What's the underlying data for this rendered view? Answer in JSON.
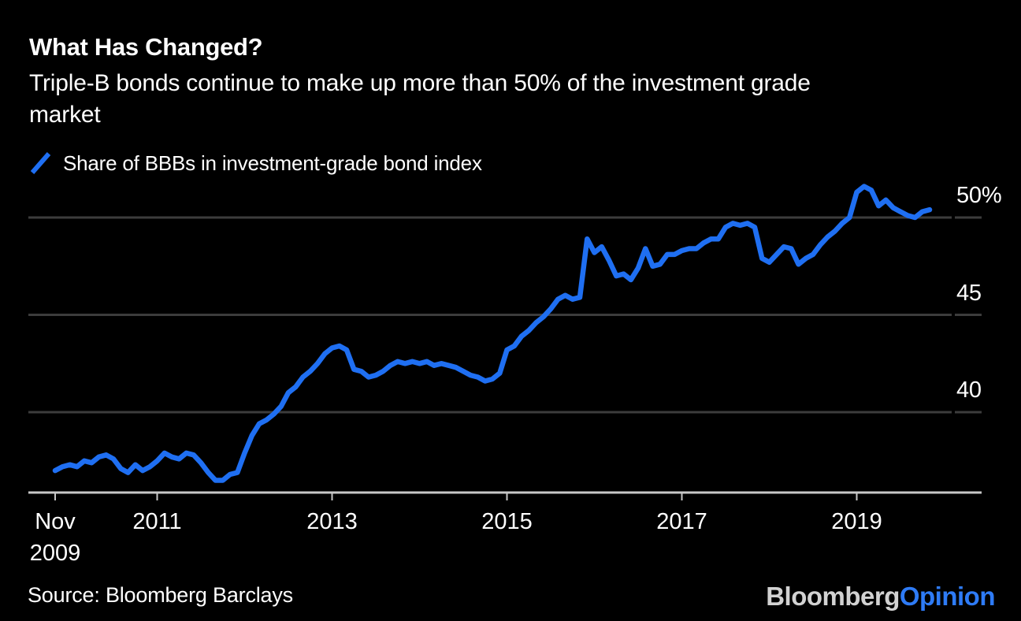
{
  "header": {
    "title": "What Has Changed?",
    "subtitle_lines": [
      "Triple-B bonds continue to make up more than 50% of the investment grade",
      "market"
    ]
  },
  "legend": {
    "marker": "blue-slash",
    "label": "Share of BBBs in investment-grade bond index"
  },
  "source": {
    "label": "Source: Bloomberg Barclays"
  },
  "branding": {
    "name": "Bloomberg",
    "product": "Opinion"
  },
  "colors": {
    "background": "#000000",
    "line": "#1f6ff2",
    "gridline": "#3c3c3c",
    "axis": "#c7c7c7",
    "text": "#ffffff",
    "logo_name": "#d2d2d2",
    "logo_product": "#2e7bf6"
  },
  "chart_data": {
    "type": "line",
    "title": "What Has Changed?",
    "subtitle": "Triple-B bonds continue to make up more than 50% of the investment grade market",
    "series_name": "Share of BBBs in investment-grade bond index",
    "unit": "%",
    "frequency": "monthly",
    "x_start": "2009-11",
    "x_end": "2019-11",
    "ylim": [
      35.8,
      52
    ],
    "grid": "horizontal",
    "legend_position": "top-left",
    "y_ticks": [
      {
        "label": "50%",
        "value": 50
      },
      {
        "label": "45",
        "value": 45
      },
      {
        "label": "40",
        "value": 40
      }
    ],
    "x_ticks": [
      {
        "label": "Nov",
        "label2": "2009",
        "month_index": 0
      },
      {
        "label": "2011",
        "month_index": 14
      },
      {
        "label": "2013",
        "month_index": 38
      },
      {
        "label": "2015",
        "month_index": 62
      },
      {
        "label": "2017",
        "month_index": 86
      },
      {
        "label": "2019",
        "month_index": 110
      }
    ],
    "values": [
      37.0,
      37.2,
      37.3,
      37.2,
      37.5,
      37.4,
      37.7,
      37.8,
      37.6,
      37.1,
      36.9,
      37.3,
      37.0,
      37.2,
      37.5,
      37.9,
      37.7,
      37.6,
      37.9,
      37.8,
      37.4,
      36.9,
      36.5,
      36.5,
      36.8,
      36.9,
      37.9,
      38.8,
      39.4,
      39.6,
      39.9,
      40.3,
      41.0,
      41.3,
      41.8,
      42.1,
      42.5,
      43.0,
      43.3,
      43.4,
      43.2,
      42.2,
      42.1,
      41.8,
      41.9,
      42.1,
      42.4,
      42.6,
      42.5,
      42.6,
      42.5,
      42.6,
      42.4,
      42.5,
      42.4,
      42.3,
      42.1,
      41.9,
      41.8,
      41.6,
      41.7,
      42.0,
      43.2,
      43.4,
      43.9,
      44.2,
      44.6,
      44.9,
      45.3,
      45.8,
      46.0,
      45.8,
      45.9,
      48.9,
      48.2,
      48.5,
      47.8,
      47.0,
      47.1,
      46.8,
      47.4,
      48.4,
      47.5,
      47.6,
      48.1,
      48.1,
      48.3,
      48.4,
      48.4,
      48.7,
      48.9,
      48.9,
      49.5,
      49.7,
      49.6,
      49.7,
      49.5,
      47.9,
      47.7,
      48.1,
      48.5,
      48.4,
      47.6,
      47.9,
      48.1,
      48.6,
      49.0,
      49.3,
      49.7,
      50.0,
      51.3,
      51.6,
      51.4,
      50.6,
      50.9,
      50.5,
      50.3,
      50.1,
      50.0,
      50.3,
      50.4
    ]
  }
}
